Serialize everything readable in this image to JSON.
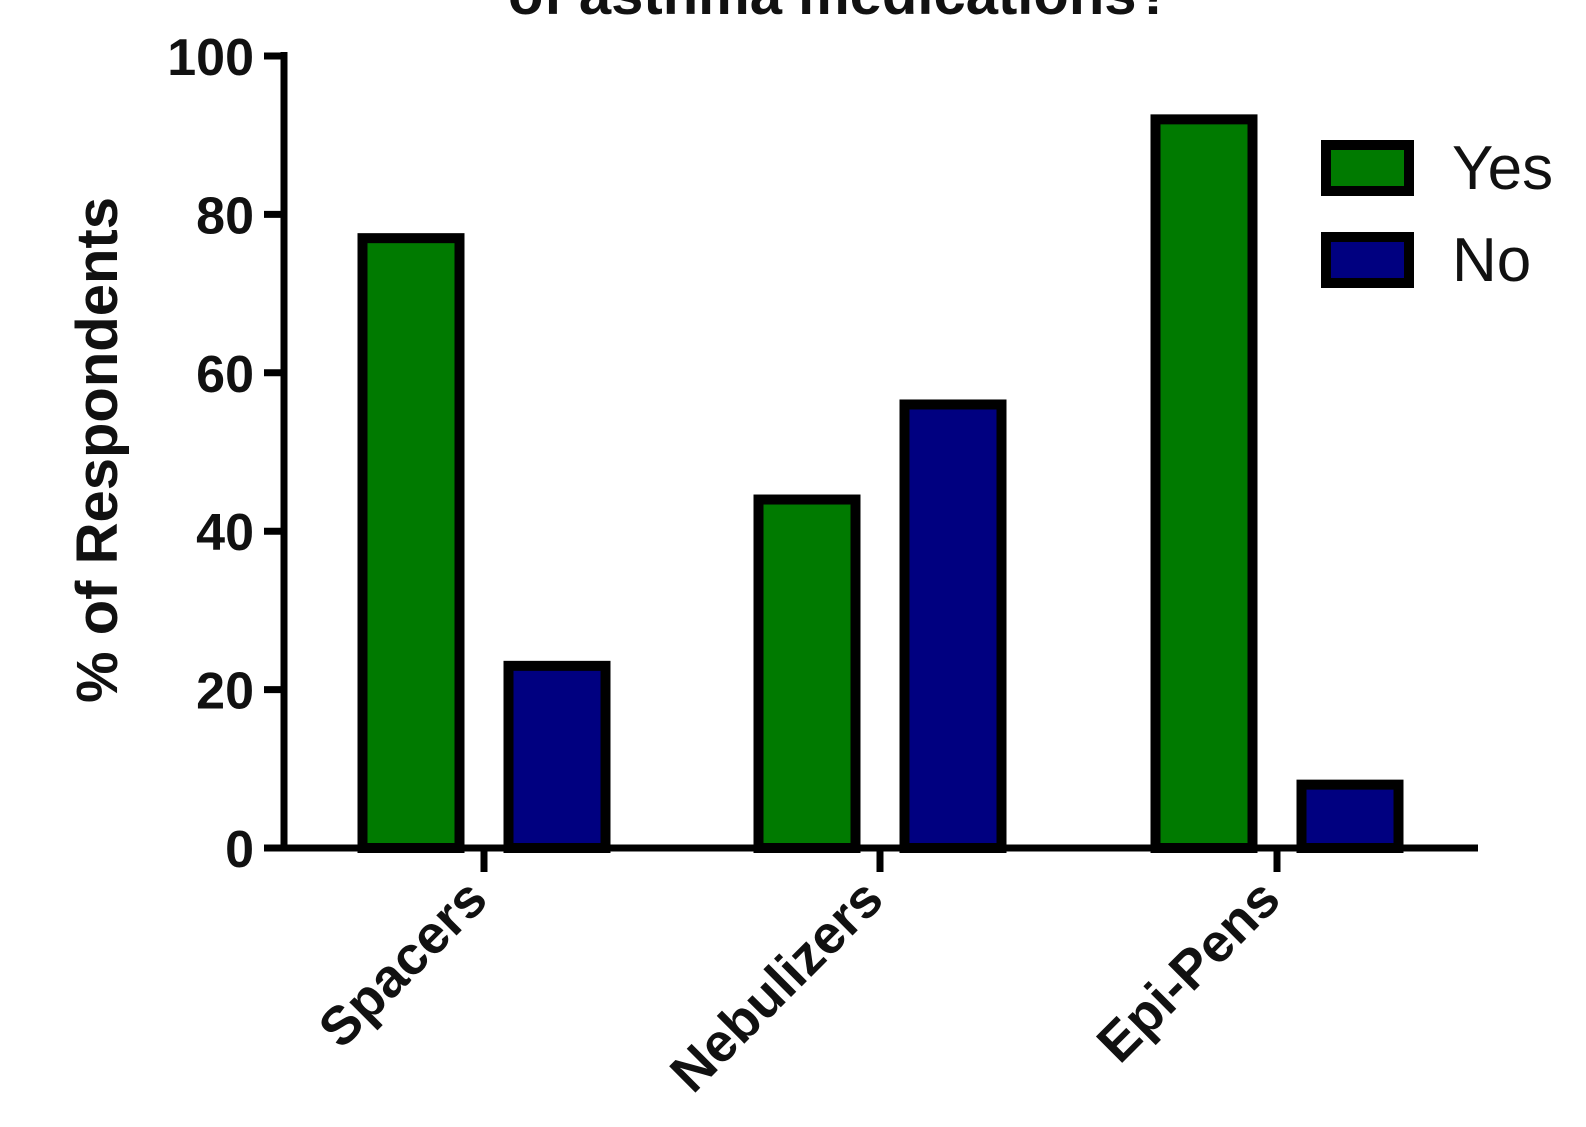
{
  "chart_data": {
    "type": "bar",
    "title": "of asthma medications?",
    "title_partially_visible": true,
    "xlabel": "",
    "ylabel": "% of Respondents",
    "categories": [
      "Spacers",
      "Nebulizers",
      "Epi-Pens"
    ],
    "series": [
      {
        "name": "Yes",
        "color": "#007A00",
        "values": [
          77,
          44,
          92
        ]
      },
      {
        "name": "No",
        "color": "#000080",
        "values": [
          23,
          56,
          8
        ]
      }
    ],
    "ylim": [
      0,
      100
    ],
    "yticks": [
      0,
      20,
      40,
      60,
      80,
      100
    ],
    "grid": false,
    "legend_position": "top-right",
    "bar_outline_color": "#000000"
  }
}
